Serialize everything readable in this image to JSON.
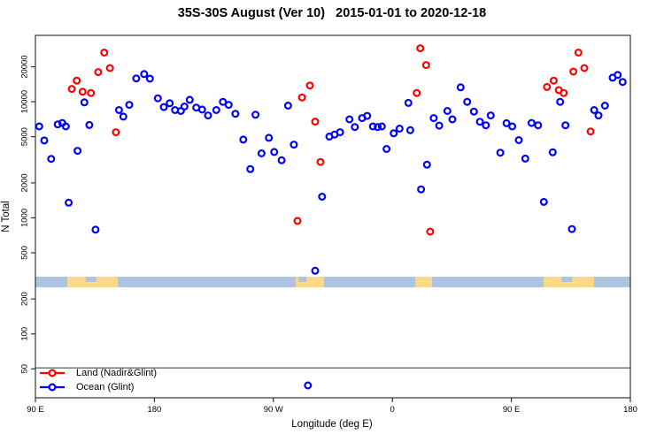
{
  "title": "35S-30S August (Ver 10)   2015-01-01 to 2020-12-18",
  "colors": {
    "land": "#ff0000",
    "ocean": "#0000ff",
    "band_ocean": "#aec3e0",
    "band_land": "#fbd88c",
    "axis": "#333333"
  },
  "legend": {
    "items": [
      {
        "label": "Land (Nadir&Glint)",
        "color": "#ff0000"
      },
      {
        "label": "Ocean (Glint)",
        "color": "#0000ff"
      }
    ],
    "box_top_n": 51
  },
  "chart_data": {
    "type": "scatter",
    "title": "35S-30S August (Ver 10)   2015-01-01 to 2020-12-18",
    "xlabel": "Longitude (deg E)",
    "ylabel": "N Total",
    "y_scale": "log",
    "ylim": [
      28,
      37000
    ],
    "grid": false,
    "y_ticks": [
      20000,
      10000,
      5000,
      2000,
      1000,
      500,
      200,
      100,
      50
    ],
    "x_ticks": [
      {
        "label": "90 E",
        "deg": 0
      },
      {
        "label": "180",
        "deg": 90
      },
      {
        "label": "90 W",
        "deg": 180
      },
      {
        "label": "0",
        "deg": 270
      },
      {
        "label": "90 E",
        "deg": 360
      },
      {
        "label": "180",
        "deg": 450
      }
    ],
    "x_axis_span_deg": 450,
    "x_axis_note": "deg measured eastward from 90E; axis wraps 90E-180-90W-0-90E-180",
    "map_band": {
      "y_top_n": 311,
      "y_bottom_n": 252,
      "ocean_color": "#aec3e0",
      "land_color": "#fbd88c",
      "land_patches_deg": [
        [
          24.1,
          62.3
        ],
        [
          196.9,
          218.3
        ],
        [
          287.3,
          300.0
        ],
        [
          384.4,
          422.5
        ]
      ],
      "notches_deg": [
        [
          38,
          46
        ],
        [
          199,
          205
        ],
        [
          398,
          406
        ]
      ]
    },
    "series": [
      {
        "name": "Land (Nadir&Glint)",
        "color": "#ff0000",
        "points_deg_n": [
          [
            52.0,
            26500
          ],
          [
            47.5,
            18000
          ],
          [
            56.4,
            19500
          ],
          [
            31.3,
            15200
          ],
          [
            27.5,
            12900
          ],
          [
            35.7,
            12200
          ],
          [
            42.0,
            11900
          ],
          [
            60.9,
            5460
          ],
          [
            201.6,
            10900
          ],
          [
            207.6,
            13800
          ],
          [
            211.6,
            6740
          ],
          [
            215.6,
            3030
          ],
          [
            198.2,
            940
          ],
          [
            291.1,
            28900
          ],
          [
            295.5,
            20700
          ],
          [
            288.4,
            11900
          ],
          [
            298.6,
            760
          ],
          [
            410.7,
            26500
          ],
          [
            406.9,
            18200
          ],
          [
            415.2,
            19500
          ],
          [
            392.0,
            15200
          ],
          [
            386.9,
            13400
          ],
          [
            395.8,
            12600
          ],
          [
            399.6,
            11900
          ],
          [
            419.9,
            5550
          ]
        ]
      },
      {
        "name": "Ocean (Glint)",
        "color": "#0000ff",
        "points_deg_n": [
          [
            2.9,
            6130
          ],
          [
            16.9,
            6380
          ],
          [
            20.3,
            6570
          ],
          [
            23.0,
            6130
          ],
          [
            40.8,
            6300
          ],
          [
            37.0,
            9870
          ],
          [
            6.7,
            4640
          ],
          [
            31.9,
            3780
          ],
          [
            11.9,
            3220
          ],
          [
            25.2,
            1350
          ],
          [
            45.5,
            790
          ],
          [
            63.2,
            8480
          ],
          [
            66.5,
            7450
          ],
          [
            71.0,
            9400
          ],
          [
            76.3,
            15900
          ],
          [
            82.2,
            17300
          ],
          [
            86.6,
            15800
          ],
          [
            92.6,
            10700
          ],
          [
            97.1,
            9000
          ],
          [
            101.6,
            9700
          ],
          [
            105.6,
            8480
          ],
          [
            110.0,
            8330
          ],
          [
            112.7,
            9100
          ],
          [
            116.7,
            10400
          ],
          [
            121.7,
            8900
          ],
          [
            126.1,
            8570
          ],
          [
            130.6,
            7620
          ],
          [
            136.8,
            8480
          ],
          [
            141.8,
            9980
          ],
          [
            146.2,
            9400
          ],
          [
            151.3,
            7880
          ],
          [
            166.5,
            7730
          ],
          [
            191.1,
            9250
          ],
          [
            157.2,
            4720
          ],
          [
            176.6,
            4890
          ],
          [
            195.5,
            4270
          ],
          [
            171.0,
            3590
          ],
          [
            180.6,
            3690
          ],
          [
            186.2,
            3130
          ],
          [
            162.5,
            2630
          ],
          [
            216.8,
            1520
          ],
          [
            211.6,
            350
          ],
          [
            206.1,
            36
          ],
          [
            222.3,
            5010
          ],
          [
            226.3,
            5220
          ],
          [
            230.4,
            5460
          ],
          [
            237.5,
            7050
          ],
          [
            241.6,
            6060
          ],
          [
            247.1,
            7230
          ],
          [
            250.9,
            7550
          ],
          [
            255.3,
            6130
          ],
          [
            258.9,
            6060
          ],
          [
            262.0,
            6130
          ],
          [
            265.6,
            3920
          ],
          [
            271.0,
            5350
          ],
          [
            275.4,
            5870
          ],
          [
            282.1,
            9770
          ],
          [
            283.5,
            5690
          ],
          [
            291.7,
            1760
          ],
          [
            296.2,
            2870
          ],
          [
            301.3,
            7230
          ],
          [
            305.4,
            6230
          ],
          [
            311.6,
            8330
          ],
          [
            315.4,
            7050
          ],
          [
            321.6,
            13300
          ],
          [
            326.6,
            9980
          ],
          [
            331.7,
            8230
          ],
          [
            336.2,
            6730
          ],
          [
            340.7,
            6270
          ],
          [
            344.4,
            7620
          ],
          [
            351.6,
            3640
          ],
          [
            356.3,
            6530
          ],
          [
            360.7,
            6130
          ],
          [
            365.6,
            4670
          ],
          [
            370.5,
            3240
          ],
          [
            375.3,
            6570
          ],
          [
            380.2,
            6270
          ],
          [
            384.6,
            1370
          ],
          [
            391.3,
            3670
          ],
          [
            396.9,
            9980
          ],
          [
            400.9,
            6270
          ],
          [
            405.8,
            800
          ],
          [
            422.6,
            8480
          ],
          [
            425.9,
            7620
          ],
          [
            430.8,
            9250
          ],
          [
            436.6,
            16100
          ],
          [
            440.4,
            17000
          ],
          [
            444.2,
            14800
          ]
        ]
      }
    ]
  }
}
